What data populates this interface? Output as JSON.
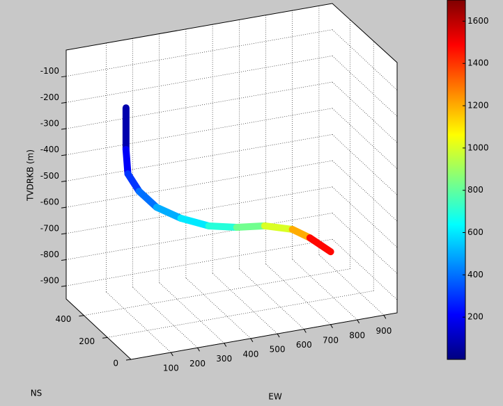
{
  "chart_data": {
    "type": "line3d",
    "xlabel": "EW",
    "ylabel": "NS",
    "zlabel": "TVDRKB (m)",
    "xlim": [
      -50,
      950
    ],
    "ylim": [
      0,
      550
    ],
    "zlim": [
      -950,
      0
    ],
    "xticks": [
      100,
      200,
      300,
      400,
      500,
      600,
      700,
      800,
      900
    ],
    "yticks": [
      0,
      200,
      400
    ],
    "zticks": [
      -100,
      -200,
      -300,
      -400,
      -500,
      -600,
      -700,
      -800,
      -900
    ],
    "grid": true,
    "series": [
      {
        "x": [
          42,
          42,
          49,
          91,
          157,
          248,
          353,
          458,
          563,
          667,
          733,
          811
        ],
        "y": [
          250,
          250,
          250,
          250,
          250,
          250,
          250,
          250,
          250,
          250,
          250,
          250
        ],
        "z": [
          -111,
          -270,
          -364,
          -438,
          -511,
          -569,
          -617,
          -641,
          -654,
          -686,
          -730,
          -797
        ],
        "c": [
          0,
          150,
          250,
          350,
          450,
          550,
          650,
          750,
          900,
          1100,
          1300,
          1650
        ]
      }
    ],
    "colorbar": {
      "clim": [
        0,
        1700
      ],
      "ticks": [
        200,
        400,
        600,
        800,
        1000,
        1200,
        1400,
        1600
      ],
      "colormap": "jet"
    }
  }
}
